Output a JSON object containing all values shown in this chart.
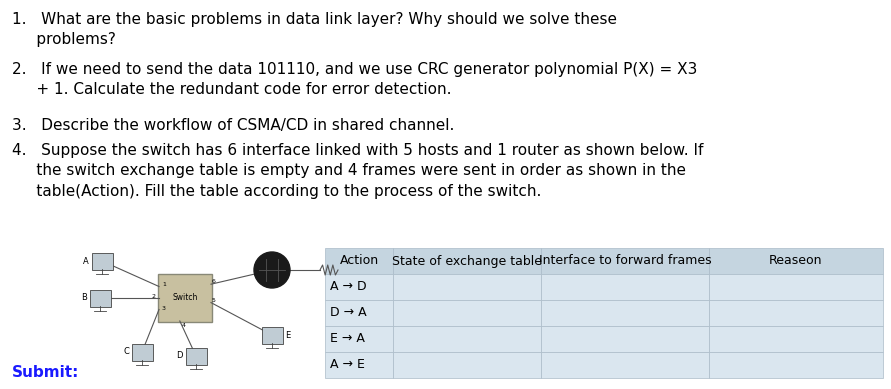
{
  "bg_color": "#ffffff",
  "text_color": "#000000",
  "submit_label": "Submit:",
  "table_header": [
    "Action",
    "State of exchange table",
    "Interface to forward frames",
    "Reaseon"
  ],
  "table_rows": [
    "A → D",
    "D → A",
    "E → A",
    "A → E"
  ],
  "table_header_bg": "#c5d5e0",
  "table_row_bg": "#dae6ef",
  "font_size_q": 11,
  "font_size_table_header": 9,
  "font_size_table_row": 9,
  "font_size_submit": 11,
  "q1": "1.   What are the basic problems in data link layer? Why should we solve these\n     problems?",
  "q2": "2.   If we need to send the data 101110, and we use CRC generator polynomial P(X) = X3\n     + 1. Calculate the redundant code for error detection.",
  "q3": "3.   Describe the workflow of CSMA/CD in shared channel.",
  "q4_line1": "4.   Suppose the switch has 6 interface linked with 5 hosts and 1 router as shown below. If",
  "q4_line2": "     the switch exchange table is empty and 4 frames were sent in order as shown in the",
  "q4_line3": "     table(Action). Fill the table according to the process of the switch."
}
